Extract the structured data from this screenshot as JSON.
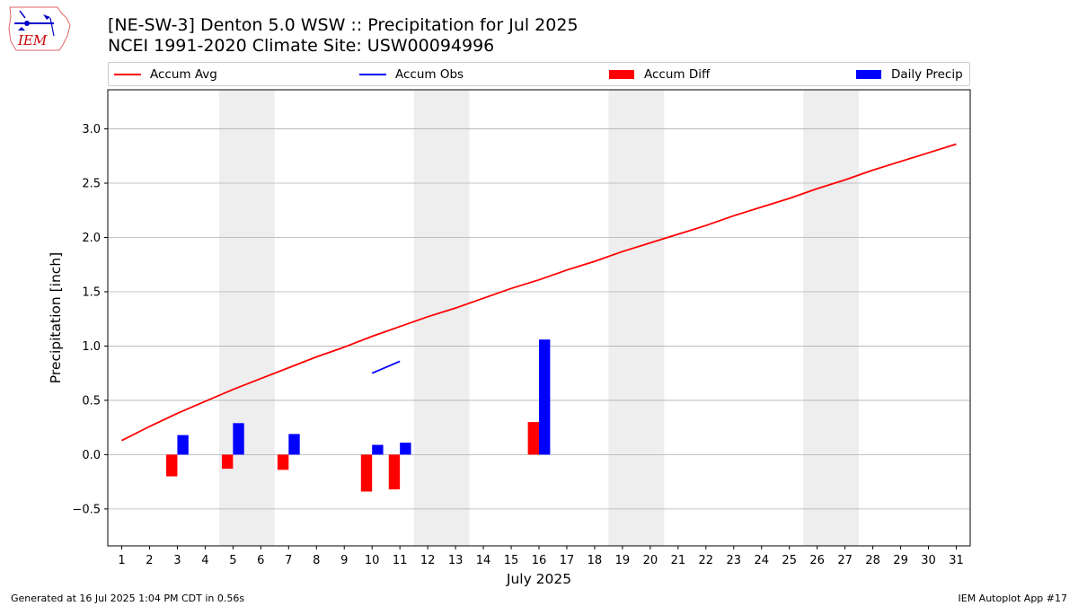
{
  "header": {
    "title_line1": "[NE-SW-3] Denton 5.0 WSW :: Precipitation for Jul 2025",
    "title_line2": "NCEI 1991-2020 Climate Site: USW00094996"
  },
  "logo": {
    "text": "IEM"
  },
  "footer": {
    "generated": "Generated at 16 Jul 2025 1:04 PM CDT in 0.56s",
    "app": "IEM Autoplot App #17"
  },
  "colors": {
    "accum_avg": "#ff0000",
    "accum_obs": "#0000ff",
    "accum_diff": "#ff0000",
    "daily_precip": "#0000ff",
    "weekend_shade": "#eeeeee",
    "grid": "#b0b0b0"
  },
  "chart_data": {
    "type": "bar",
    "xlabel": "July 2025",
    "ylabel": "Precipitation [inch]",
    "xlim": [
      0.5,
      31.5
    ],
    "ylim": [
      -0.84,
      3.36
    ],
    "yticks": [
      -0.5,
      0.0,
      0.5,
      1.0,
      1.5,
      2.0,
      2.5,
      3.0
    ],
    "ytick_labels": [
      "−0.5",
      "0.0",
      "0.5",
      "1.0",
      "1.5",
      "2.0",
      "2.5",
      "3.0"
    ],
    "days": [
      1,
      2,
      3,
      4,
      5,
      6,
      7,
      8,
      9,
      10,
      11,
      12,
      13,
      14,
      15,
      16,
      17,
      18,
      19,
      20,
      21,
      22,
      23,
      24,
      25,
      26,
      27,
      28,
      29,
      30,
      31
    ],
    "grid": "horizontal",
    "legend_position": "top",
    "weekend_spans": [
      [
        5,
        6
      ],
      [
        12,
        13
      ],
      [
        19,
        20
      ],
      [
        26,
        27
      ]
    ],
    "series": [
      {
        "name": "Accum Avg",
        "kind": "line",
        "x": [
          1,
          2,
          3,
          4,
          5,
          6,
          7,
          8,
          9,
          10,
          11,
          12,
          13,
          14,
          15,
          16,
          17,
          18,
          19,
          20,
          21,
          22,
          23,
          24,
          25,
          26,
          27,
          28,
          29,
          30,
          31
        ],
        "values": [
          0.13,
          0.26,
          0.38,
          0.49,
          0.6,
          0.7,
          0.8,
          0.9,
          0.99,
          1.09,
          1.18,
          1.27,
          1.35,
          1.44,
          1.53,
          1.61,
          1.7,
          1.78,
          1.87,
          1.95,
          2.03,
          2.11,
          2.2,
          2.28,
          2.36,
          2.45,
          2.53,
          2.62,
          2.7,
          2.78,
          2.86
        ]
      },
      {
        "name": "Accum Obs",
        "kind": "line",
        "x": [
          10,
          11
        ],
        "values": [
          0.75,
          0.86
        ]
      },
      {
        "name": "Accum Diff",
        "kind": "bar",
        "x": [
          3,
          5,
          7,
          10,
          11,
          16
        ],
        "values": [
          -0.2,
          -0.13,
          -0.14,
          -0.34,
          -0.32,
          0.3
        ]
      },
      {
        "name": "Daily Precip",
        "kind": "bar",
        "x": [
          3,
          5,
          7,
          10,
          11,
          16
        ],
        "values": [
          0.18,
          0.29,
          0.19,
          0.09,
          0.11,
          1.06
        ]
      }
    ]
  }
}
